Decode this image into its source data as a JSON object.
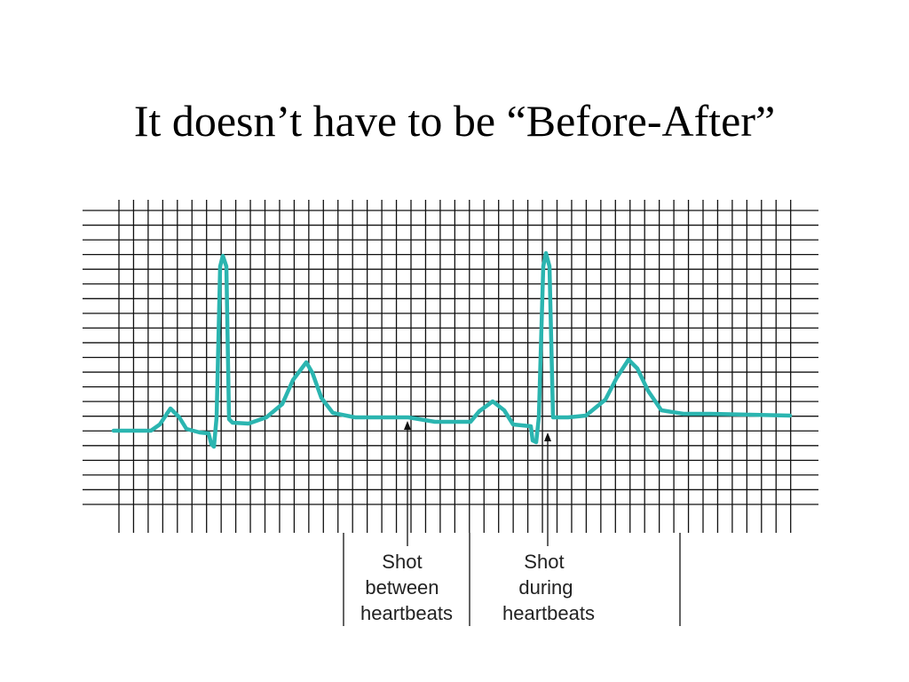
{
  "title": "It doesn’t have to be “Before-After”",
  "annotations": [
    {
      "lines": [
        "Shot",
        "between",
        "heartbeats"
      ]
    },
    {
      "lines": [
        "Shot",
        "during",
        "heartbeats"
      ]
    }
  ]
}
